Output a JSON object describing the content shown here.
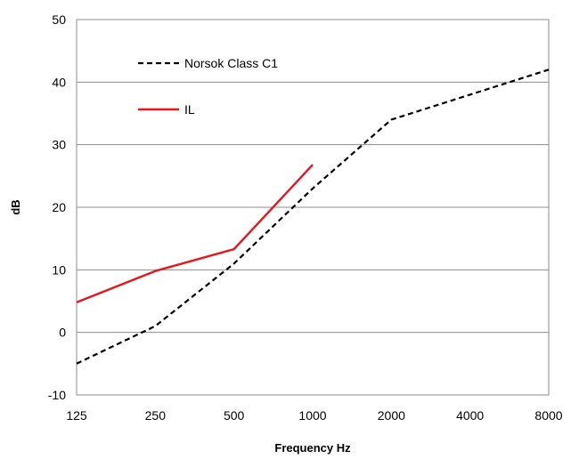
{
  "chart_data": {
    "type": "line",
    "x_categories": [
      "125",
      "250",
      "500",
      "1000",
      "2000",
      "4000",
      "8000"
    ],
    "xlabel": "Frequency Hz",
    "ylabel": "dB",
    "ylim": [
      -10,
      50
    ],
    "yticks": [
      "-10",
      "0",
      "10",
      "20",
      "30",
      "40",
      "50"
    ],
    "grid": "horizontal",
    "legend_position": "top-left",
    "series": [
      {
        "name": "Norsok Class C1",
        "style": "dashed",
        "color": "#000000",
        "values": [
          -5,
          1,
          11,
          23,
          34,
          38,
          42
        ]
      },
      {
        "name": "IL",
        "style": "solid",
        "color": "#e8161b",
        "values": [
          4.8,
          9.8,
          13.3,
          26.8,
          null,
          null,
          null
        ]
      }
    ]
  }
}
